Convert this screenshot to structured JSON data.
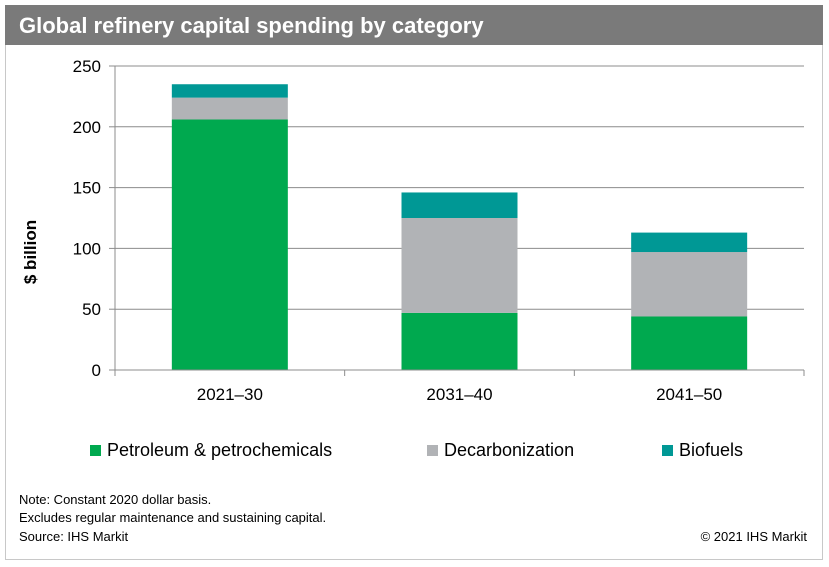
{
  "header": {
    "title": "Global refinery capital spending by category"
  },
  "notes": {
    "note_line1": "Note: Constant 2020 dollar basis.",
    "note_line2": "Excludes regular maintenance and sustaining capital.",
    "source": "Source: IHS Markit",
    "copyright": "© 2021 IHS Markit"
  },
  "chart_data": {
    "type": "bar",
    "stacked": true,
    "title": "Global refinery capital spending by category",
    "xlabel": "",
    "ylabel": "$ billion",
    "ylim": [
      0,
      250
    ],
    "yticks": [
      0,
      50,
      100,
      150,
      200,
      250
    ],
    "grid": true,
    "legend_position": "bottom",
    "categories": [
      "2021–30",
      "2031–40",
      "2041–50"
    ],
    "series": [
      {
        "name": "Petroleum & petrochemicals",
        "color": "#00a94f",
        "values": [
          206,
          47,
          44
        ]
      },
      {
        "name": "Decarbonization",
        "color": "#b1b3b6",
        "values": [
          18,
          78,
          53
        ]
      },
      {
        "name": "Biofuels",
        "color": "#009895",
        "values": [
          11,
          21,
          16
        ]
      }
    ]
  }
}
